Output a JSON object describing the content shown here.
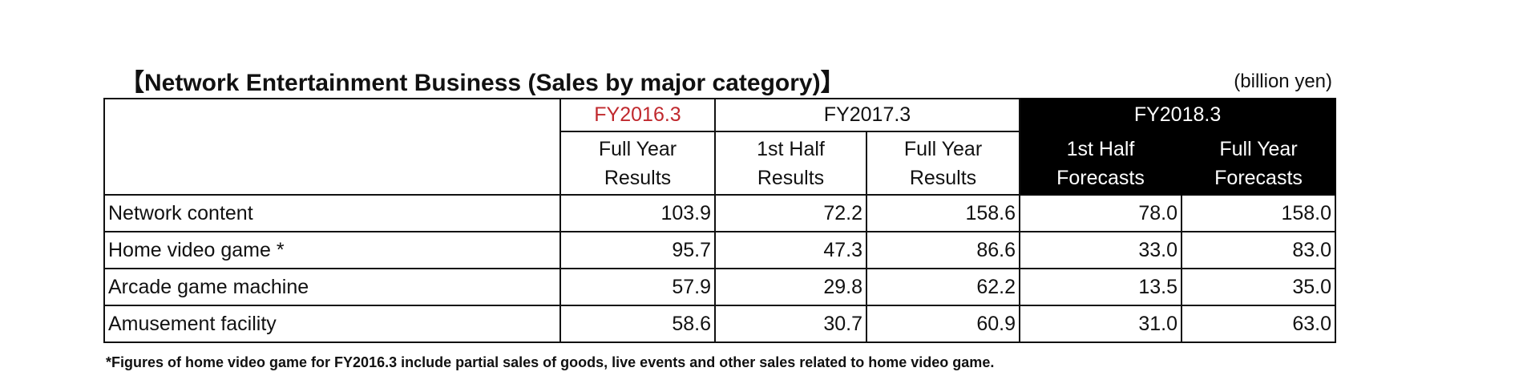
{
  "header": {
    "title": "【Network Entertainment Business (Sales by major category)】",
    "unit": "(billion yen)"
  },
  "table": {
    "groups": [
      "FY2016.3",
      "FY2017.3",
      "FY2018.3"
    ],
    "columns": [
      [
        "Full Year",
        "Results"
      ],
      [
        "1st Half",
        "Results"
      ],
      [
        "Full Year",
        "Results"
      ],
      [
        "1st Half",
        "Forecasts"
      ],
      [
        "Full Year",
        "Forecasts"
      ]
    ],
    "rows": [
      [
        "Network content",
        "103.9",
        "72.2",
        "158.6",
        "78.0",
        "158.0"
      ],
      [
        "Home video game *",
        "95.7",
        "47.3",
        "86.6",
        "33.0",
        "83.0"
      ],
      [
        "Arcade game machine",
        "57.9",
        "29.8",
        "62.2",
        "13.5",
        "35.0"
      ],
      [
        "Amusement facility",
        "58.6",
        "30.7",
        "60.9",
        "31.0",
        "63.0"
      ]
    ]
  },
  "footnote": "*Figures of home video game for FY2016.3 include partial sales of goods, live events and other sales related to home video game."
}
